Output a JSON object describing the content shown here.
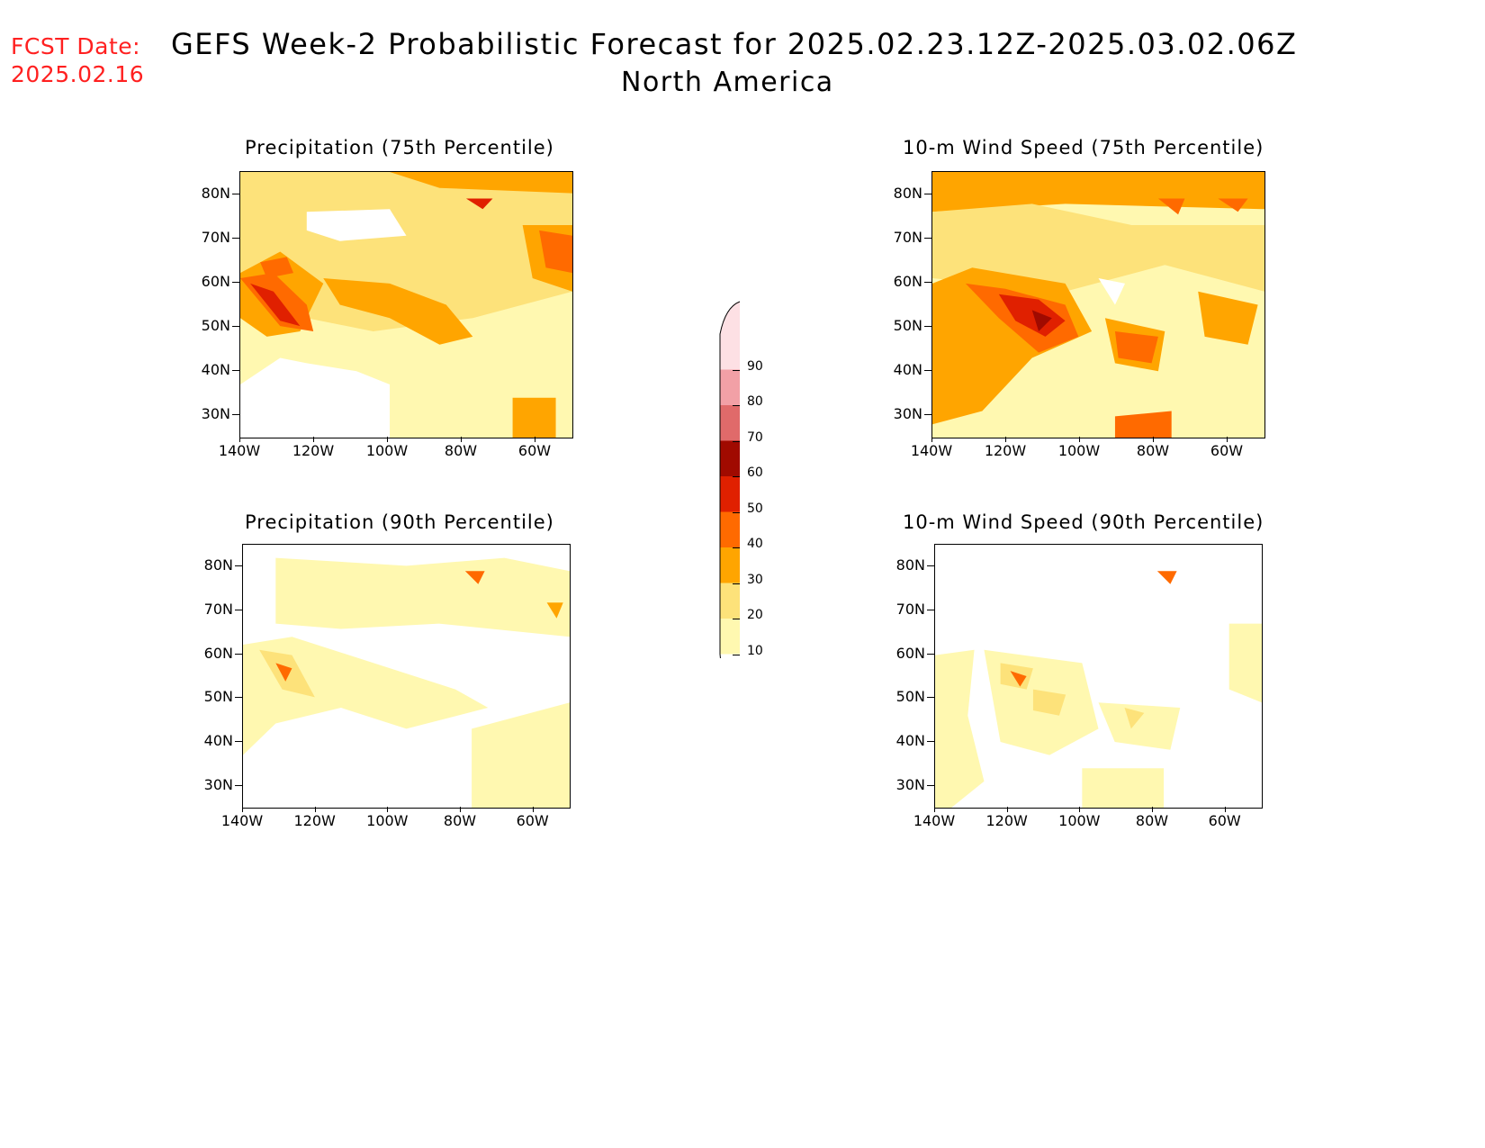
{
  "header": {
    "fcst_label": "FCST Date:",
    "fcst_date": "2025.02.16",
    "title": "GEFS Week-2 Probabilistic Forecast for 2025.02.23.12Z-2025.03.02.06Z",
    "subtitle": "North America"
  },
  "panels": [
    {
      "title": "Precipitation (75th Percentile)"
    },
    {
      "title": "10-m Wind Speed (75th Percentile)"
    },
    {
      "title": "Precipitation (90th Percentile)"
    },
    {
      "title": "10-m Wind Speed (90th Percentile)"
    }
  ],
  "axes": {
    "lat_labels": [
      "80N",
      "70N",
      "60N",
      "50N",
      "40N",
      "30N"
    ],
    "lon_labels": [
      "140W",
      "120W",
      "100W",
      "80W",
      "60W"
    ]
  },
  "legend": {
    "labels": [
      "90",
      "80",
      "70",
      "60",
      "50",
      "40",
      "30",
      "20",
      "10"
    ],
    "colors": [
      "#fde0e4",
      "#f2a0a6",
      "#e06a6a",
      "#a00a00",
      "#e02000",
      "#ff6a00",
      "#ffa500",
      "#fde27a",
      "#fff8b0"
    ],
    "unit": "%"
  }
}
